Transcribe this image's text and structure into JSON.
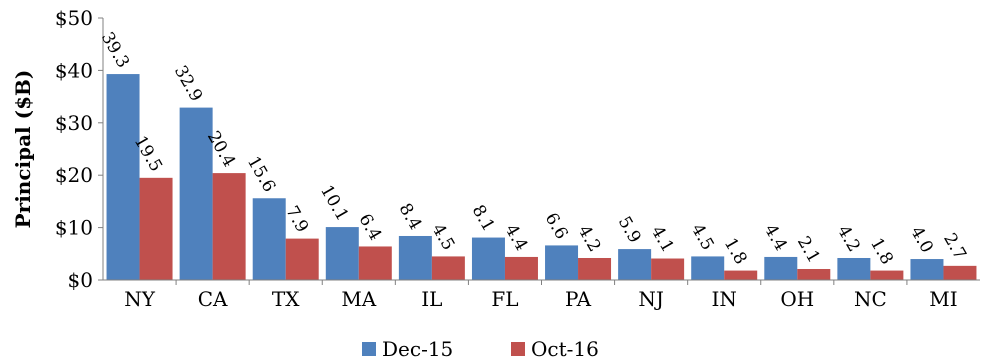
{
  "chart_data": {
    "type": "bar",
    "title": "",
    "xlabel": "",
    "ylabel": "Principal ($B)",
    "ylim": [
      0,
      50
    ],
    "yticks": [
      0,
      10,
      20,
      30,
      40,
      50
    ],
    "ytick_labels": [
      "$0",
      "$10",
      "$20",
      "$30",
      "$40",
      "$50"
    ],
    "categories": [
      "NY",
      "CA",
      "TX",
      "MA",
      "IL",
      "FL",
      "PA",
      "NJ",
      "IN",
      "OH",
      "NC",
      "MI"
    ],
    "series": [
      {
        "name": "Dec-15",
        "color": "#4F81BD",
        "values": [
          39.3,
          32.9,
          15.6,
          10.1,
          8.4,
          8.1,
          6.6,
          5.9,
          4.5,
          4.4,
          4.2,
          4.0
        ],
        "labels": [
          "39.3",
          "32.9",
          "15.6",
          "10.1",
          "8.4",
          "8.1",
          "6.6",
          "5.9",
          "4.5",
          "4.4",
          "4.2",
          "4.0"
        ]
      },
      {
        "name": "Oct-16",
        "color": "#C0504D",
        "values": [
          19.5,
          20.4,
          7.9,
          6.4,
          4.5,
          4.4,
          4.2,
          4.1,
          1.8,
          2.1,
          1.8,
          2.7
        ],
        "labels": [
          "19.5",
          "20.4",
          "7.9",
          "6.4",
          "4.5",
          "4.4",
          "4.2",
          "4.1",
          "1.8",
          "2.1",
          "1.8",
          "2.7"
        ]
      }
    ],
    "legend_position": "bottom",
    "grid": false
  }
}
